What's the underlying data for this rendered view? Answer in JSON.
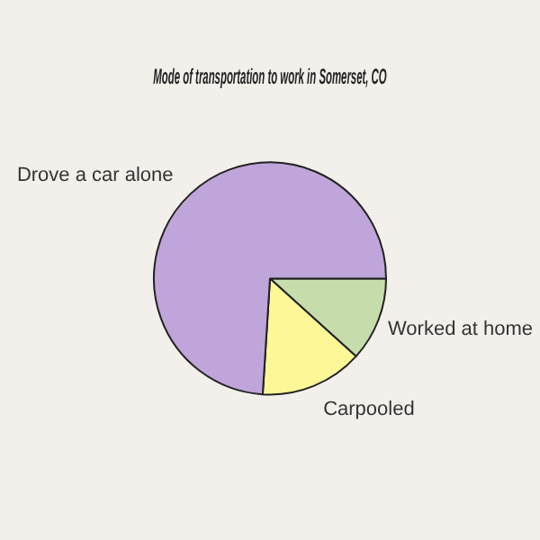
{
  "chart_data": {
    "type": "pie",
    "title": "Mode of transportation to work in Somerset, CO",
    "categories": [
      "Worked at home",
      "Carpooled",
      "Drove a car alone"
    ],
    "values": [
      11.7,
      14.3,
      74
    ],
    "colors": [
      "#c6dcaa",
      "#fdf797",
      "#bfa5d9"
    ]
  }
}
